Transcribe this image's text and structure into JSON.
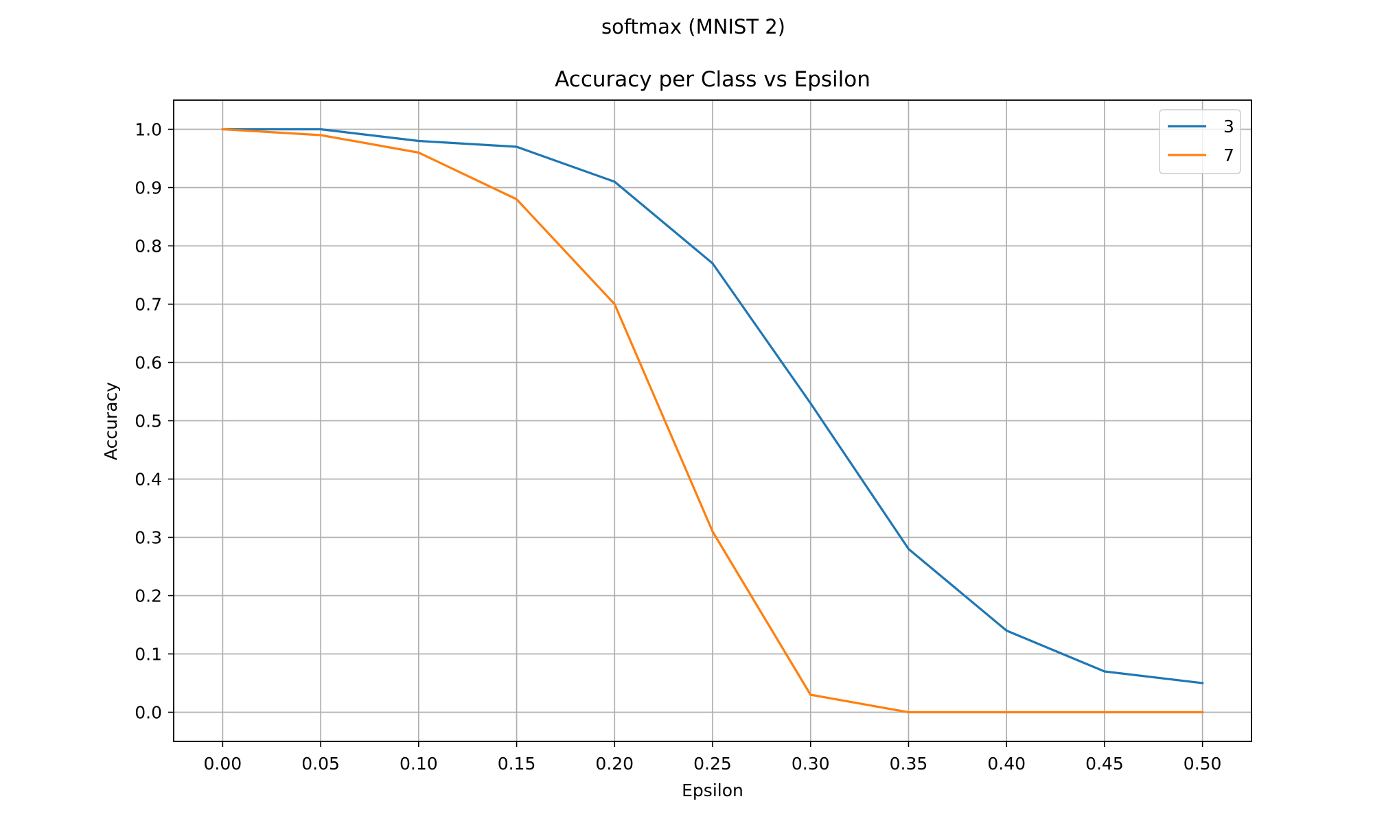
{
  "figure": {
    "suptitle": "softmax (MNIST 2)"
  },
  "chart_data": {
    "type": "line",
    "title": "Accuracy per Class vs Epsilon",
    "xlabel": "Epsilon",
    "ylabel": "Accuracy",
    "x": [
      0.0,
      0.05,
      0.1,
      0.15,
      0.2,
      0.25,
      0.3,
      0.35,
      0.4,
      0.45,
      0.5
    ],
    "xlim": [
      -0.025,
      0.525
    ],
    "ylim": [
      -0.05,
      1.05
    ],
    "xticks": [
      0.0,
      0.05,
      0.1,
      0.15,
      0.2,
      0.25,
      0.3,
      0.35,
      0.4,
      0.45,
      0.5
    ],
    "xtick_labels": [
      "0.00",
      "0.05",
      "0.10",
      "0.15",
      "0.20",
      "0.25",
      "0.30",
      "0.35",
      "0.40",
      "0.45",
      "0.50"
    ],
    "yticks": [
      0.0,
      0.1,
      0.2,
      0.3,
      0.4,
      0.5,
      0.6,
      0.7,
      0.8,
      0.9,
      1.0
    ],
    "ytick_labels": [
      "0.0",
      "0.1",
      "0.2",
      "0.3",
      "0.4",
      "0.5",
      "0.6",
      "0.7",
      "0.8",
      "0.9",
      "1.0"
    ],
    "grid": true,
    "legend_position": "top-right",
    "series": [
      {
        "name": "3",
        "color": "#1f77b4",
        "values": [
          1.0,
          1.0,
          0.98,
          0.97,
          0.91,
          0.77,
          0.53,
          0.28,
          0.14,
          0.07,
          0.05
        ]
      },
      {
        "name": "7",
        "color": "#ff7f0e",
        "values": [
          1.0,
          0.99,
          0.96,
          0.88,
          0.7,
          0.31,
          0.03,
          0.0,
          0.0,
          0.0,
          0.0
        ]
      }
    ]
  }
}
